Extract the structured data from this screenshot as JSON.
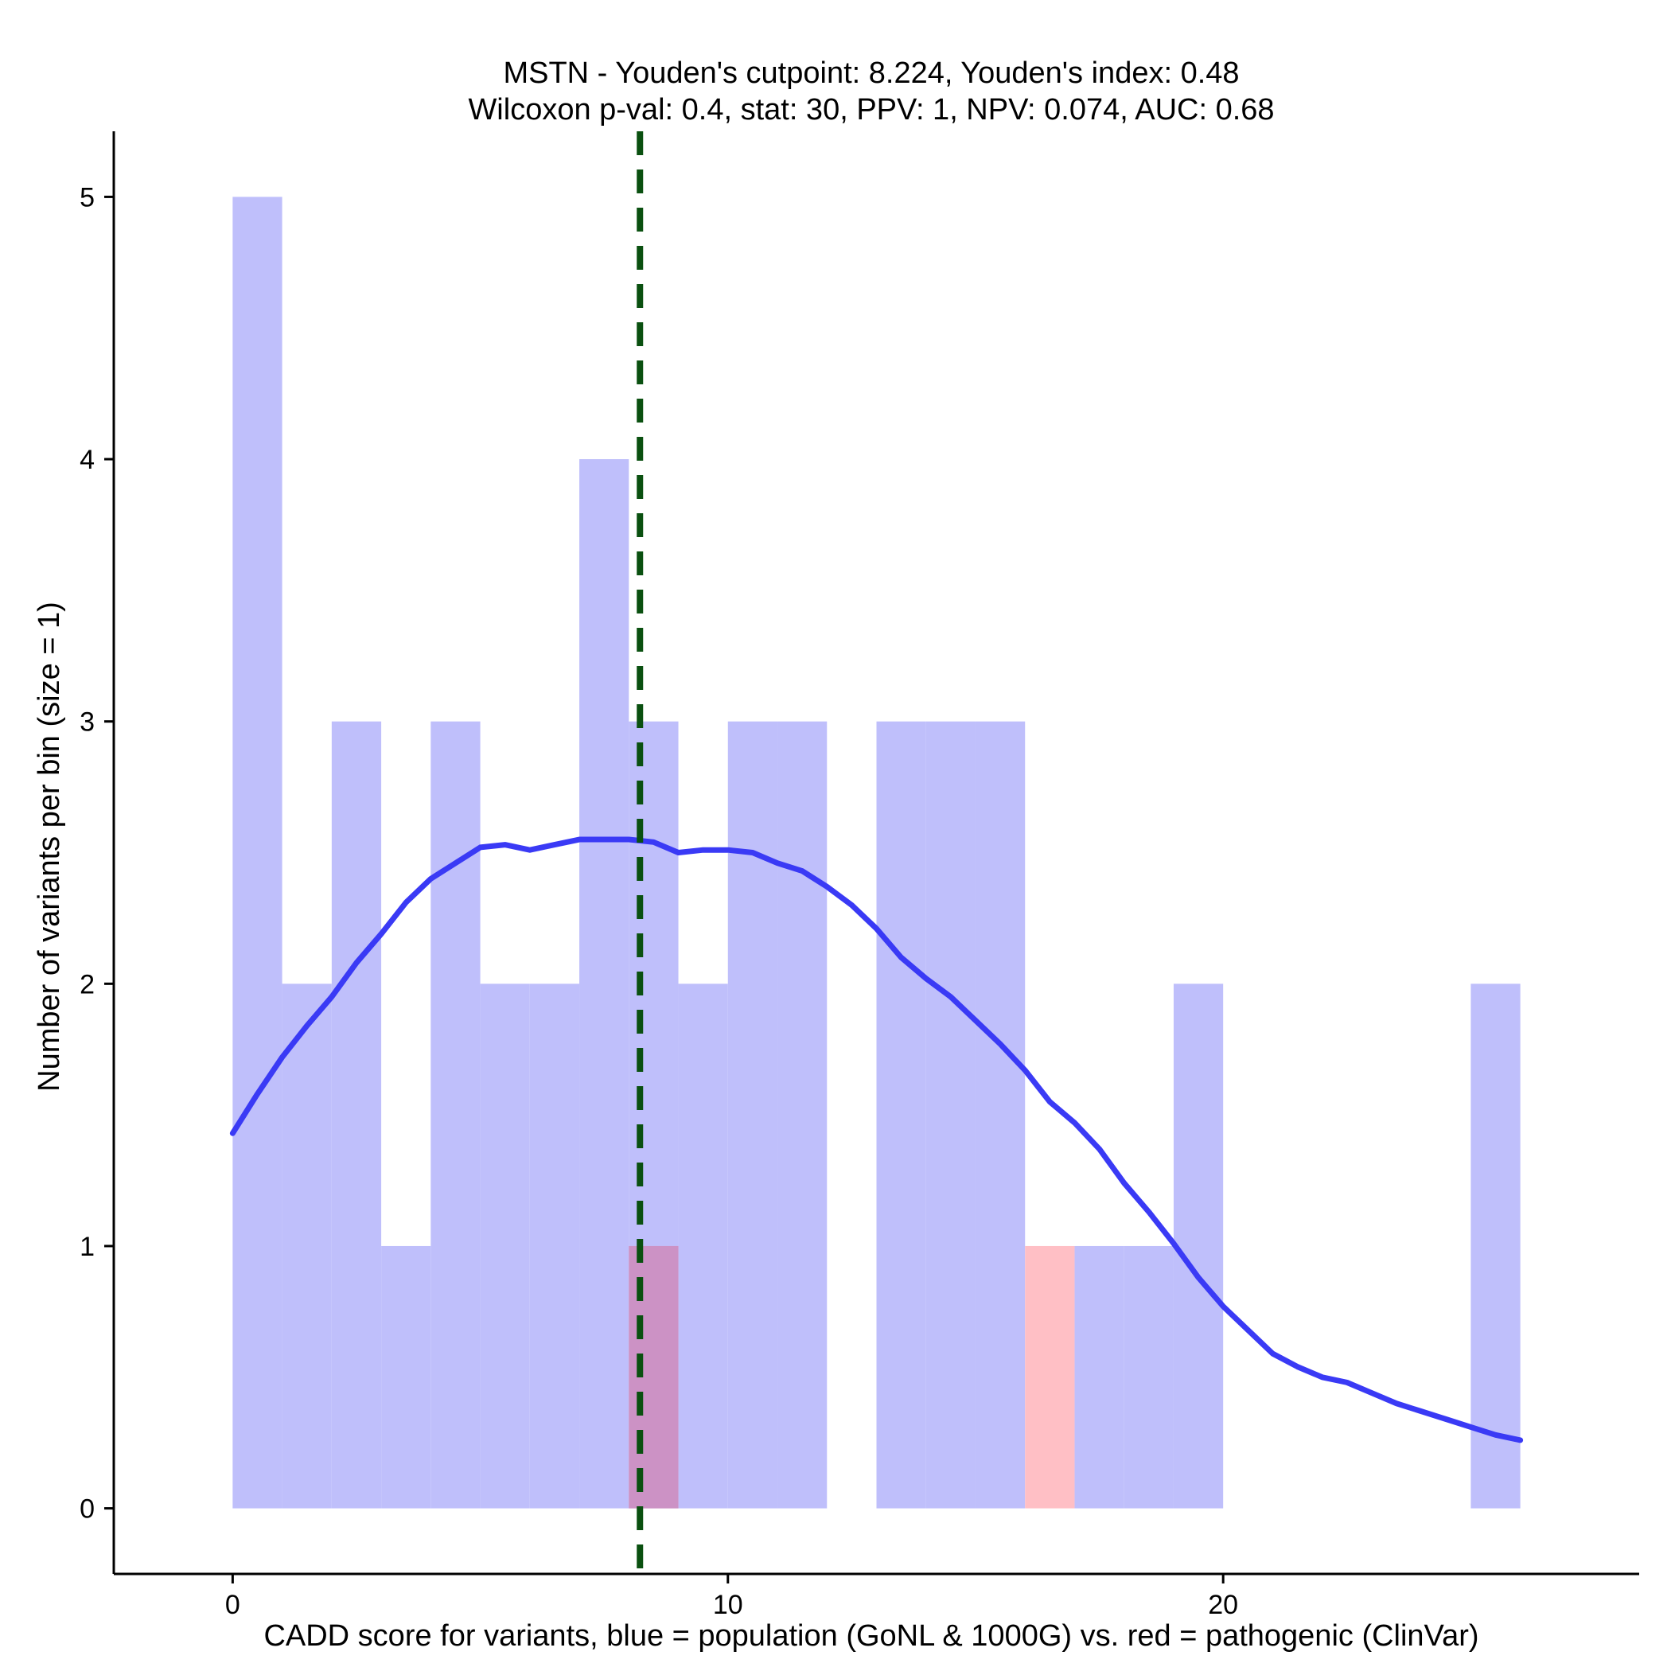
{
  "chart_data": {
    "type": "bar",
    "title_line1": "MSTN - Youden's cutpoint: 8.224, Youden's index: 0.48",
    "title_line2": "Wilcoxon p-val: 0.4, stat: 30, PPV: 1, NPV: 0.074, AUC: 0.68",
    "xlabel": "CADD score for variants, blue = population (GoNL & 1000G) vs. red = pathogenic (ClinVar)",
    "ylabel": "Number of variants per bin (size = 1)",
    "xlim": [
      -2.4,
      28.4
    ],
    "ylim": [
      -0.25,
      5.25
    ],
    "x_ticks": [
      0,
      10,
      20
    ],
    "x_tick_labels": [
      "0",
      "10",
      "20"
    ],
    "y_ticks": [
      0,
      1,
      2,
      3,
      4,
      5
    ],
    "y_tick_labels": [
      "0",
      "1",
      "2",
      "3",
      "4",
      "5"
    ],
    "bin_width": 1,
    "series": [
      {
        "name": "population (GoNL & 1000G)",
        "color": "#bfbffb",
        "bins": [
          {
            "x0": 0,
            "count": 5
          },
          {
            "x0": 1,
            "count": 2
          },
          {
            "x0": 2,
            "count": 3
          },
          {
            "x0": 3,
            "count": 1
          },
          {
            "x0": 4,
            "count": 3
          },
          {
            "x0": 5,
            "count": 2
          },
          {
            "x0": 6,
            "count": 2
          },
          {
            "x0": 7,
            "count": 4
          },
          {
            "x0": 8,
            "count": 3
          },
          {
            "x0": 9,
            "count": 2
          },
          {
            "x0": 10,
            "count": 3
          },
          {
            "x0": 11,
            "count": 3
          },
          {
            "x0": 13,
            "count": 3
          },
          {
            "x0": 14,
            "count": 3
          },
          {
            "x0": 15,
            "count": 3
          },
          {
            "x0": 17,
            "count": 1
          },
          {
            "x0": 18,
            "count": 1
          },
          {
            "x0": 19,
            "count": 2
          },
          {
            "x0": 25,
            "count": 2
          }
        ]
      },
      {
        "name": "pathogenic (ClinVar)",
        "color": "#ffbfc5",
        "bins": [
          {
            "x0": 8,
            "count": 1
          },
          {
            "x0": 16,
            "count": 1
          }
        ]
      }
    ],
    "overlap_color": "#cc92c5",
    "density_curve": {
      "color": "#3a3af5",
      "points": [
        [
          0,
          1.43
        ],
        [
          0.5,
          1.58
        ],
        [
          1,
          1.72
        ],
        [
          1.5,
          1.84
        ],
        [
          2,
          1.95
        ],
        [
          2.5,
          2.08
        ],
        [
          3,
          2.19
        ],
        [
          3.5,
          2.31
        ],
        [
          4,
          2.4
        ],
        [
          4.5,
          2.46
        ],
        [
          5,
          2.52
        ],
        [
          5.5,
          2.53
        ],
        [
          6,
          2.51
        ],
        [
          6.5,
          2.53
        ],
        [
          7,
          2.55
        ],
        [
          7.5,
          2.55
        ],
        [
          8,
          2.55
        ],
        [
          8.5,
          2.54
        ],
        [
          9,
          2.5
        ],
        [
          9.5,
          2.51
        ],
        [
          10,
          2.51
        ],
        [
          10.5,
          2.5
        ],
        [
          11,
          2.46
        ],
        [
          11.5,
          2.43
        ],
        [
          12,
          2.37
        ],
        [
          12.5,
          2.3
        ],
        [
          13,
          2.21
        ],
        [
          13.5,
          2.1
        ],
        [
          14,
          2.02
        ],
        [
          14.5,
          1.95
        ],
        [
          15,
          1.86
        ],
        [
          15.5,
          1.77
        ],
        [
          16,
          1.67
        ],
        [
          16.5,
          1.55
        ],
        [
          17,
          1.47
        ],
        [
          17.5,
          1.37
        ],
        [
          18,
          1.24
        ],
        [
          18.5,
          1.13
        ],
        [
          19,
          1.01
        ],
        [
          19.5,
          0.88
        ],
        [
          20,
          0.77
        ],
        [
          20.5,
          0.68
        ],
        [
          21,
          0.59
        ],
        [
          21.5,
          0.54
        ],
        [
          22,
          0.5
        ],
        [
          22.5,
          0.48
        ],
        [
          23,
          0.44
        ],
        [
          23.5,
          0.4
        ],
        [
          24,
          0.37
        ],
        [
          24.5,
          0.34
        ],
        [
          25,
          0.31
        ],
        [
          25.5,
          0.28
        ],
        [
          26,
          0.26
        ]
      ]
    },
    "cutpoint": {
      "value": 8.224,
      "color": "#0a5010"
    }
  }
}
